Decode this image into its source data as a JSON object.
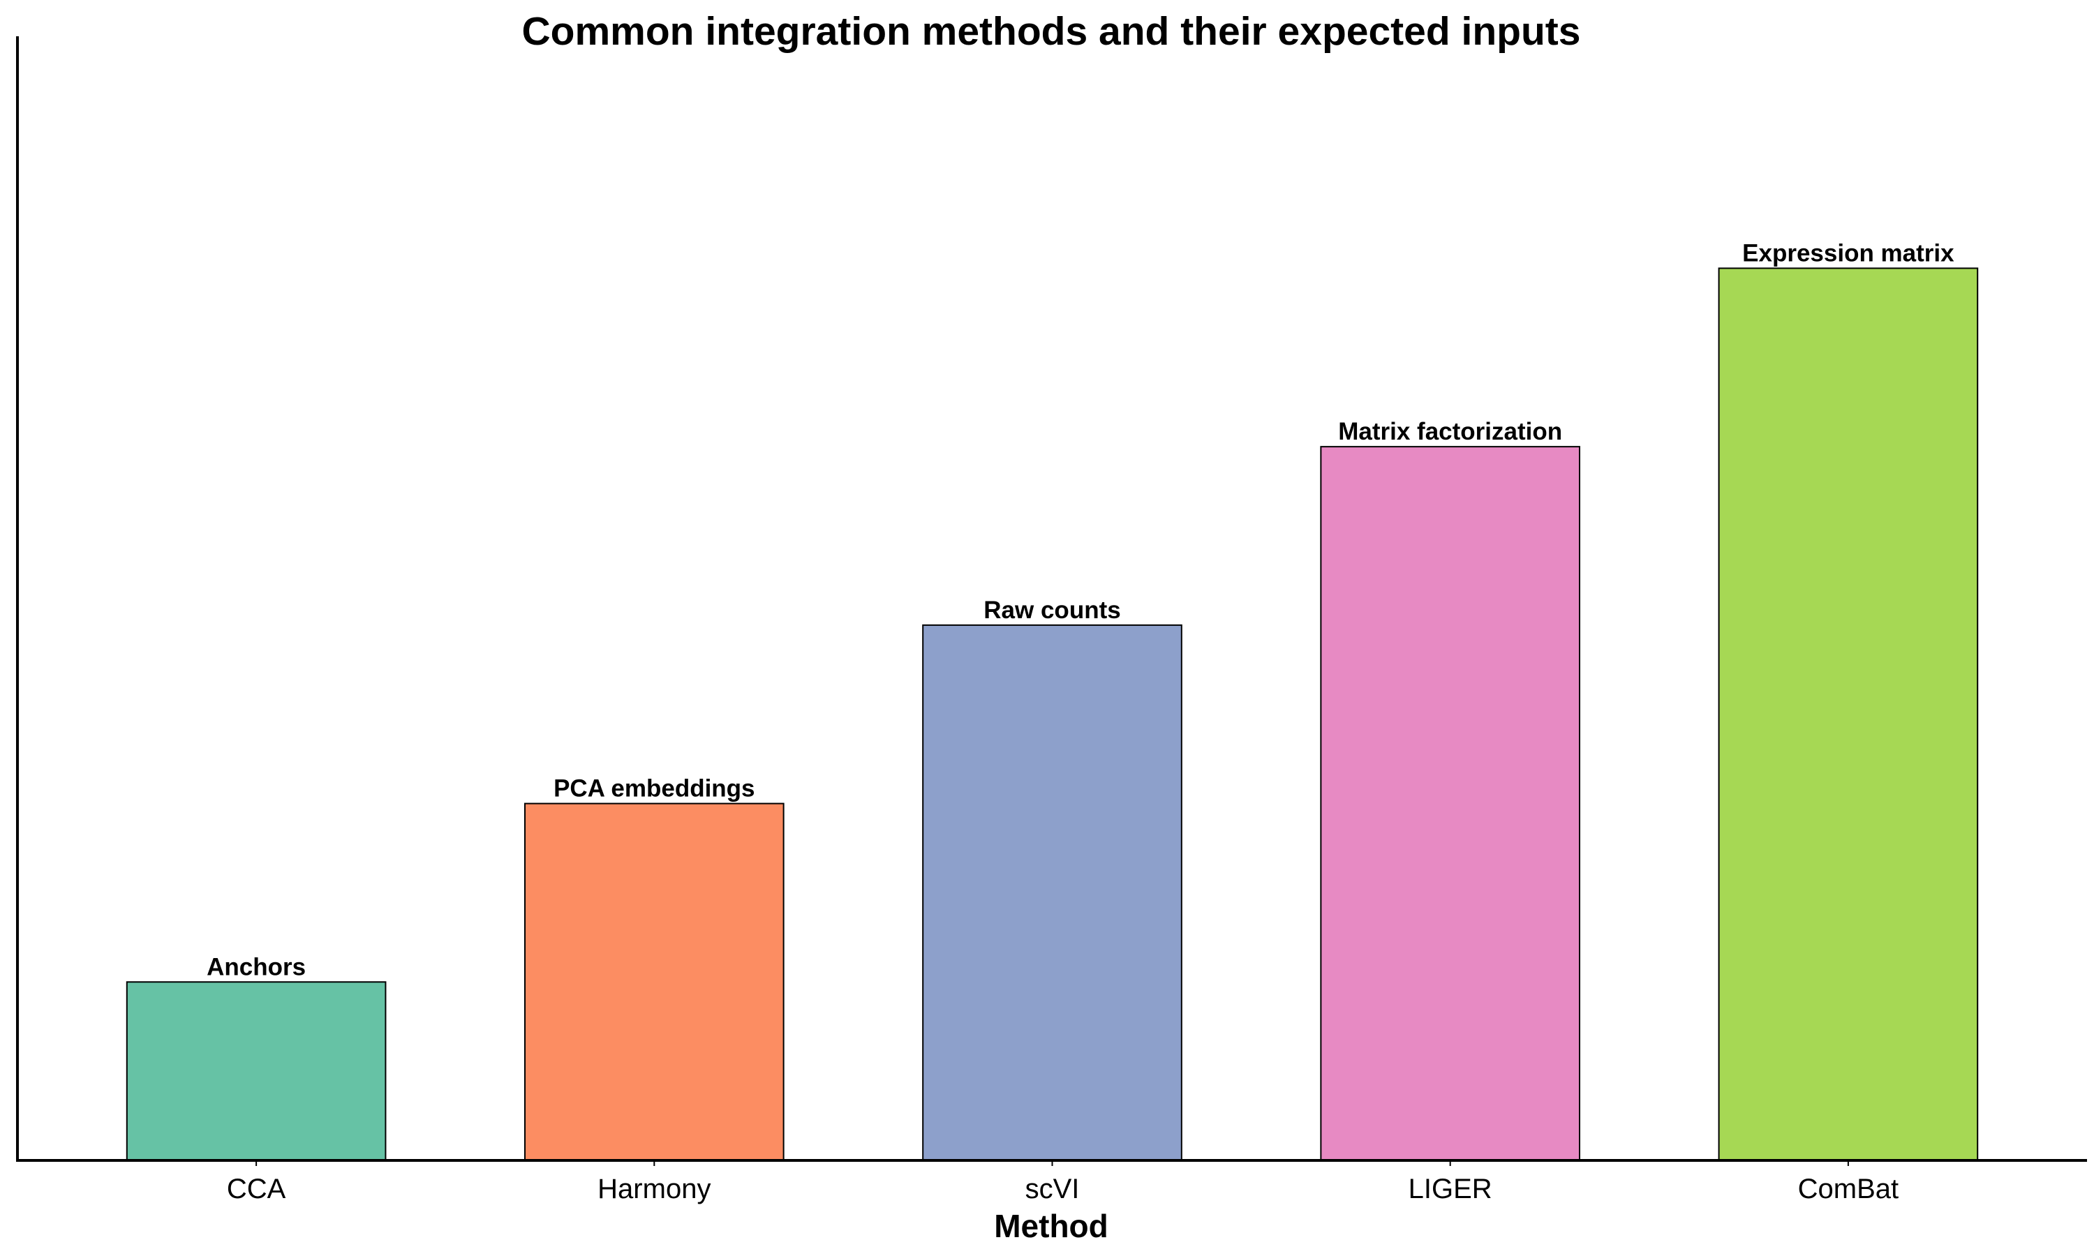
{
  "chart_data": {
    "type": "bar",
    "title": "Common integration methods and their expected inputs",
    "xlabel": "Method",
    "ylabel": "",
    "categories": [
      "CCA",
      "Harmony",
      "scVI",
      "LIGER",
      "ComBat"
    ],
    "values": [
      1,
      2,
      3,
      4,
      5
    ],
    "data_labels": [
      "Anchors",
      "PCA embeddings",
      "Raw counts",
      "Matrix factorization",
      "Expression matrix"
    ],
    "colors": [
      "#66c2a5",
      "#fc8d62",
      "#8da0cb",
      "#e78ac3",
      "#a6d854"
    ],
    "ylim": [
      0,
      6.3
    ],
    "grid": false,
    "legend": "none",
    "y_ticks_shown": false
  }
}
